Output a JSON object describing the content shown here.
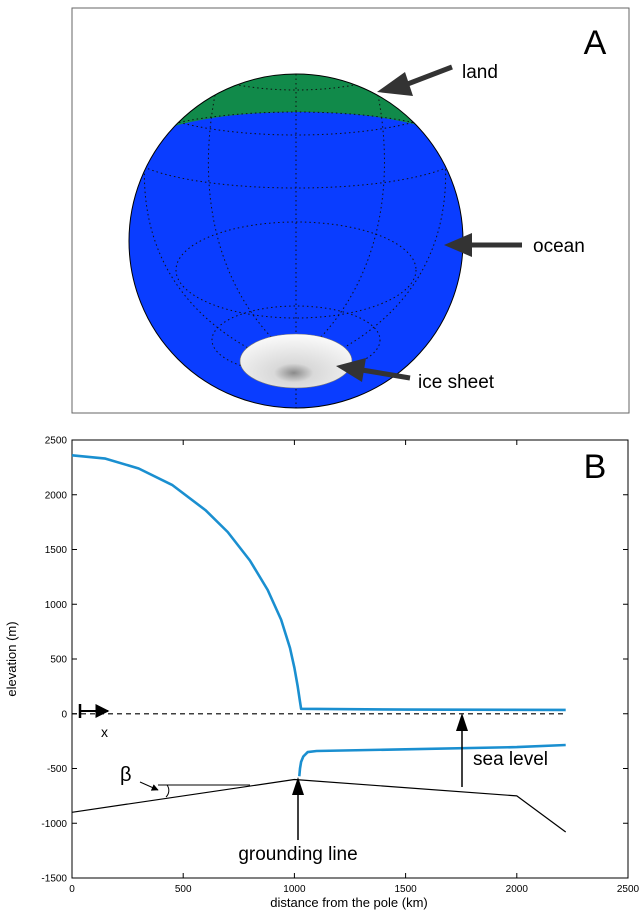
{
  "panel_a": {
    "label": "A",
    "annotations": [
      {
        "id": "land",
        "text": "land"
      },
      {
        "id": "ocean",
        "text": "ocean"
      },
      {
        "id": "ice",
        "text": "ice sheet"
      }
    ],
    "colors": {
      "land": "#118a4a",
      "ocean": "#0a3dff",
      "ice": "#e6e6e6",
      "arrow": "#333333"
    }
  },
  "chart_data": {
    "type": "line",
    "label": "B",
    "xlabel": "distance from the pole (km)",
    "ylabel": "elevation (m)",
    "xlim": [
      0,
      2500
    ],
    "ylim": [
      -1500,
      2500
    ],
    "xticks": [
      0,
      500,
      1000,
      1500,
      2000,
      2500
    ],
    "yticks": [
      -1500,
      -1000,
      -500,
      0,
      500,
      1000,
      1500,
      2000,
      2500
    ],
    "grid": false,
    "series": [
      {
        "id": "ice_surface",
        "color": "#1a8fd0",
        "x": [
          0,
          150,
          300,
          450,
          600,
          700,
          800,
          880,
          940,
          980,
          1000,
          1015,
          1025,
          1030,
          1500,
          2220
        ],
        "y": [
          2360,
          2330,
          2240,
          2090,
          1860,
          1660,
          1400,
          1130,
          860,
          600,
          420,
          250,
          110,
          45,
          38,
          35
        ]
      },
      {
        "id": "ice_base",
        "color": "#1a8fd0",
        "x": [
          1022,
          1025,
          1030,
          1040,
          1060,
          1100,
          1500,
          2000,
          2220
        ],
        "y": [
          -570,
          -500,
          -440,
          -390,
          -350,
          -340,
          -325,
          -305,
          -285
        ]
      },
      {
        "id": "bedrock",
        "color": "#000000",
        "x": [
          0,
          1000,
          2000,
          2220
        ],
        "y": [
          -900,
          -600,
          -750,
          -1080
        ]
      },
      {
        "id": "sea_level",
        "color": "#000000",
        "dashed": true,
        "x": [
          0,
          2220
        ],
        "y": [
          0,
          0
        ]
      }
    ],
    "annotations": [
      {
        "id": "x_axis",
        "text": "x"
      },
      {
        "id": "beta",
        "text": "β"
      },
      {
        "id": "grounding",
        "text": "grounding line"
      },
      {
        "id": "sea",
        "text": "sea level"
      }
    ]
  }
}
